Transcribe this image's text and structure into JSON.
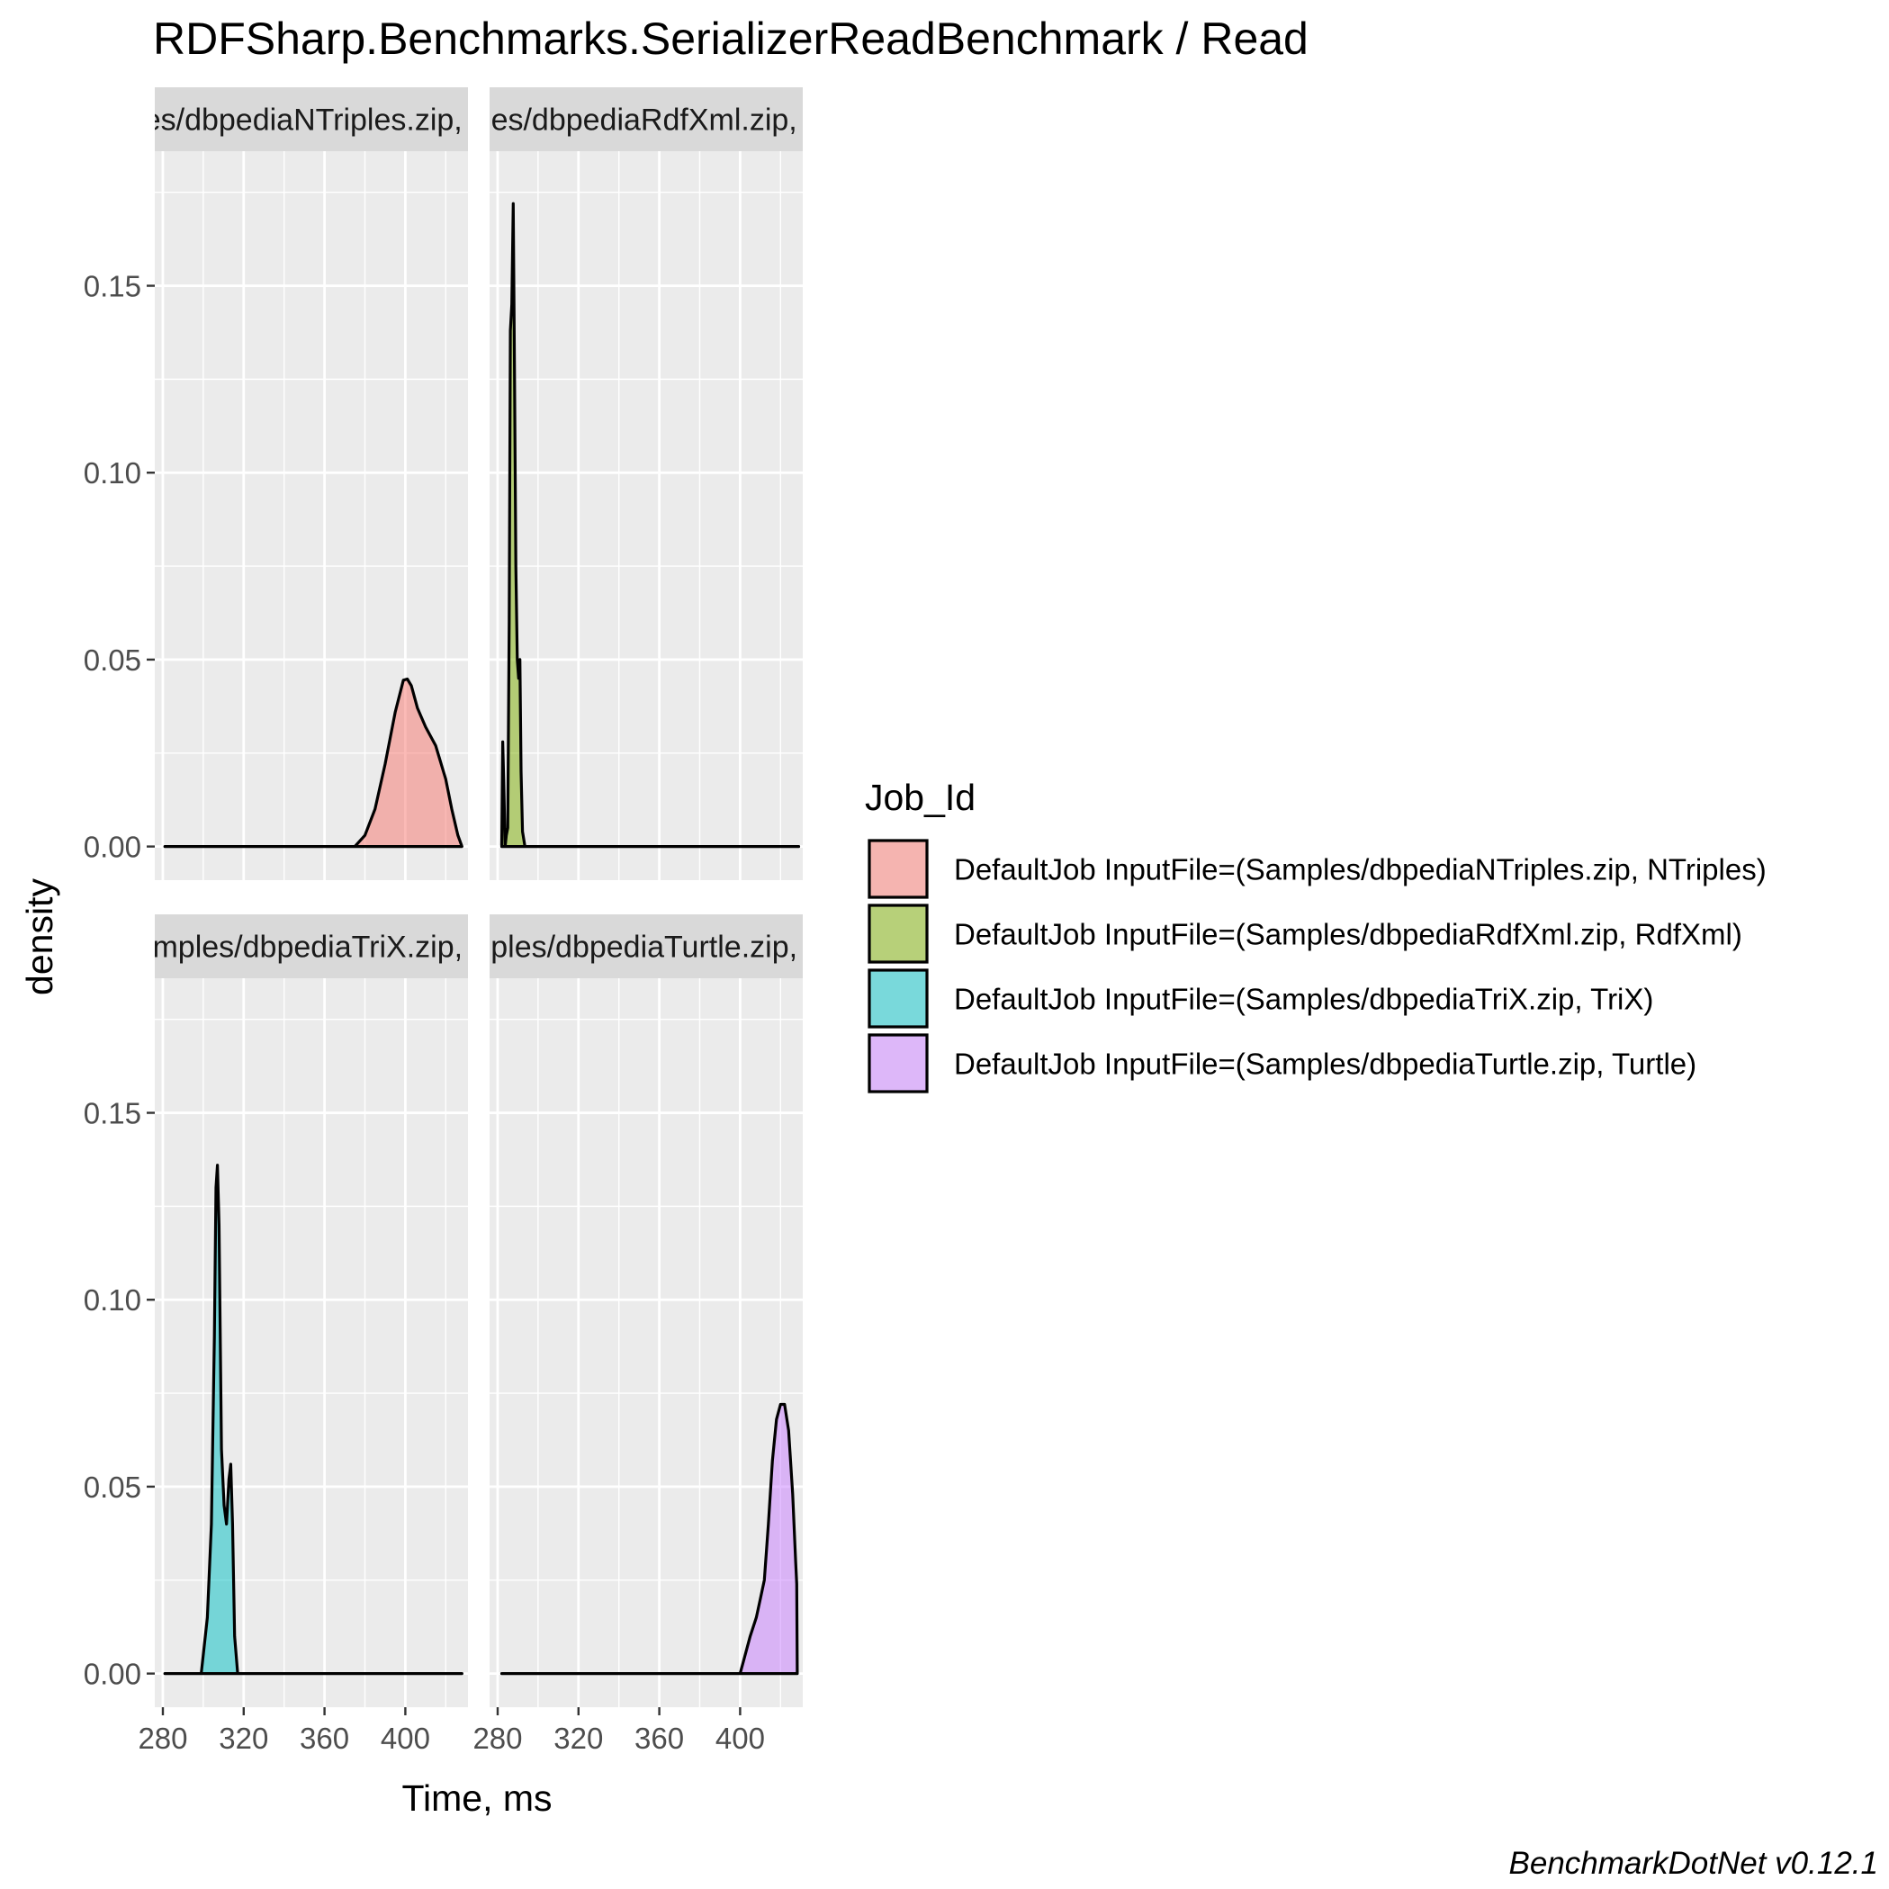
{
  "chart_data": {
    "type": "area",
    "subtype": "faceted density",
    "title": "RDFSharp.Benchmarks.SerializerReadBenchmark / Read",
    "xlabel": "Time, ms",
    "ylabel": "density",
    "caption": "BenchmarkDotNet v0.12.1",
    "xlim": [
      276,
      431
    ],
    "ylim": [
      -0.009,
      0.186
    ],
    "x_ticks": [
      280,
      320,
      360,
      400
    ],
    "x_tick_labels": [
      "280",
      "320",
      "360",
      "400"
    ],
    "y_ticks": [
      0.0,
      0.05,
      0.1,
      0.15
    ],
    "y_tick_labels": [
      "0.00",
      "0.05",
      "0.10",
      "0.15"
    ],
    "grid": true,
    "legend": {
      "title": "Job_Id",
      "placement": "right"
    },
    "series": [
      {
        "name": "DefaultJob InputFile=(Samples/dbpediaNTriples.zip, NTriples)",
        "strip_label": "=(Samples/dbpediaNTriples.zip, NTriples)",
        "fill": "#F8766D",
        "x": [
          281,
          345,
          375,
          380,
          385,
          390,
          395,
          399,
          401,
          403,
          406,
          410,
          415,
          420,
          423,
          426,
          428
        ],
        "y": [
          0,
          0,
          0,
          0.003,
          0.01,
          0.022,
          0.036,
          0.0445,
          0.0448,
          0.043,
          0.037,
          0.032,
          0.027,
          0.018,
          0.01,
          0.003,
          0
        ]
      },
      {
        "name": "DefaultJob InputFile=(Samples/dbpediaRdfXml.zip, RdfXml)",
        "strip_label": "=(Samples/dbpediaRdfXml.zip, RdfXml)",
        "fill": "#7CAE00",
        "x": [
          282,
          282.5,
          283,
          283.7,
          284.3,
          285,
          285.7,
          286.3,
          287,
          287.7,
          288.3,
          289,
          289.7,
          290.4,
          291,
          291.6,
          292.3,
          293.5,
          296,
          350,
          400,
          429
        ],
        "y": [
          0,
          0.028,
          0.018,
          0.0,
          0.003,
          0.005,
          0.06,
          0.138,
          0.145,
          0.172,
          0.13,
          0.075,
          0.05,
          0.045,
          0.05,
          0.02,
          0.004,
          0,
          0,
          0,
          0,
          0
        ]
      },
      {
        "name": "DefaultJob InputFile=(Samples/dbpediaTriX.zip, TriX)",
        "strip_label": "=(Samples/dbpediaTriX.zip, TriX)",
        "fill": "#00BFC4",
        "x": [
          281,
          295,
          299,
          302,
          304,
          305.5,
          306.3,
          307,
          307.8,
          309,
          310.3,
          311.5,
          312.7,
          313.6,
          314.5,
          315.5,
          317,
          350,
          400,
          428
        ],
        "y": [
          0,
          0,
          0,
          0.015,
          0.04,
          0.09,
          0.13,
          0.136,
          0.12,
          0.06,
          0.045,
          0.04,
          0.052,
          0.056,
          0.04,
          0.01,
          0,
          0,
          0,
          0
        ]
      },
      {
        "name": "DefaultJob InputFile=(Samples/dbpediaTurtle.zip, Turtle)",
        "strip_label": "=(Samples/dbpediaTurtle.zip, Turtle)",
        "fill": "#C77CFF",
        "x": [
          282,
          350,
          400,
          402,
          405,
          408,
          410,
          412,
          414,
          416,
          418,
          420,
          422,
          424,
          426,
          427.5,
          428,
          428.3
        ],
        "y": [
          0,
          0,
          0,
          0.004,
          0.01,
          0.015,
          0.02,
          0.025,
          0.04,
          0.057,
          0.068,
          0.072,
          0.072,
          0.065,
          0.048,
          0.03,
          0.024,
          0
        ]
      }
    ]
  }
}
